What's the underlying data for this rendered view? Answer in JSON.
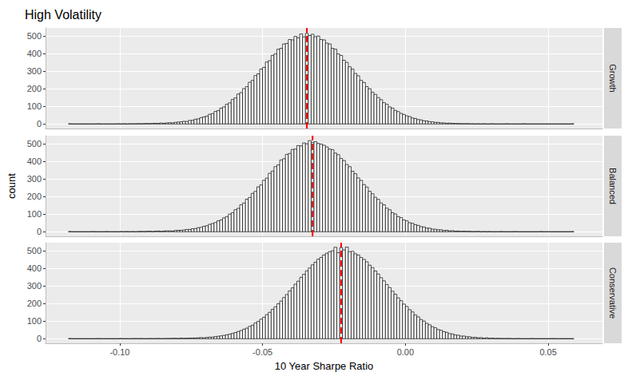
{
  "chart_data": {
    "type": "histogram",
    "title": "High Volatility",
    "xlabel": "10 Year Sharpe Ratio",
    "ylabel": "count",
    "bins": [
      -0.118,
      -0.117,
      -0.116,
      -0.115,
      -0.114,
      -0.113,
      -0.112,
      -0.111,
      -0.11,
      -0.109,
      -0.108,
      -0.107,
      -0.106,
      -0.105,
      -0.104,
      -0.103,
      -0.102,
      -0.101,
      -0.1,
      -0.099,
      -0.098,
      -0.097,
      -0.096,
      -0.095,
      -0.094,
      -0.093,
      -0.092,
      -0.091,
      -0.09,
      -0.089,
      -0.088,
      -0.087,
      -0.086,
      -0.085,
      -0.084,
      -0.083,
      -0.082,
      -0.081,
      -0.08,
      -0.079,
      -0.078,
      -0.077,
      -0.076,
      -0.075,
      -0.074,
      -0.073,
      -0.072,
      -0.071,
      -0.07,
      -0.069,
      -0.068,
      -0.067,
      -0.066,
      -0.065,
      -0.064,
      -0.063,
      -0.062,
      -0.061,
      -0.06,
      -0.059,
      -0.058,
      -0.057,
      -0.056,
      -0.055,
      -0.054,
      -0.053,
      -0.052,
      -0.051,
      -0.05,
      -0.049,
      -0.048,
      -0.047,
      -0.046,
      -0.045,
      -0.044,
      -0.043,
      -0.042,
      -0.041,
      -0.04,
      -0.039,
      -0.038,
      -0.037,
      -0.036,
      -0.035,
      -0.034,
      -0.033,
      -0.032,
      -0.031,
      -0.03,
      -0.029,
      -0.028,
      -0.027,
      -0.026,
      -0.025,
      -0.024,
      -0.023,
      -0.022,
      -0.021,
      -0.02,
      -0.019,
      -0.018,
      -0.017,
      -0.016,
      -0.015,
      -0.014,
      -0.013,
      -0.012,
      -0.011,
      -0.01,
      -0.009,
      -0.008,
      -0.007,
      -0.006,
      -0.005,
      -0.004,
      -0.003,
      -0.002,
      -0.001,
      0,
      0.001,
      0.002,
      0.003,
      0.004,
      0.005,
      0.006,
      0.007,
      0.008,
      0.009,
      0.01,
      0.011,
      0.012,
      0.013,
      0.014,
      0.015,
      0.016,
      0.017,
      0.018,
      0.019,
      0.02,
      0.021,
      0.022,
      0.023,
      0.024,
      0.025,
      0.026,
      0.027,
      0.028,
      0.029,
      0.03,
      0.031,
      0.032,
      0.033,
      0.034,
      0.035,
      0.036,
      0.037,
      0.038,
      0.039,
      0.04,
      0.041,
      0.042,
      0.043,
      0.044,
      0.045,
      0.046,
      0.047,
      0.048,
      0.049,
      0.05,
      0.051,
      0.052,
      0.053,
      0.054,
      0.055,
      0.056,
      0.057,
      0.058,
      0.059
    ],
    "series": [
      {
        "name": "Growth",
        "mean": -0.0345,
        "values": [
          1,
          0,
          0,
          0,
          0,
          0,
          0,
          0,
          0,
          0,
          1,
          0,
          0,
          0,
          0,
          0,
          0,
          1,
          0,
          1,
          0,
          1,
          1,
          1,
          2,
          1,
          2,
          3,
          2,
          3,
          4,
          3,
          5,
          4,
          6,
          7,
          6,
          9,
          11,
          12,
          15,
          14,
          20,
          21,
          27,
          29,
          36,
          40,
          45,
          55,
          59,
          71,
          76,
          90,
          97,
          112,
          120,
          139,
          148,
          170,
          178,
          201,
          212,
          237,
          248,
          275,
          285,
          312,
          322,
          352,
          360,
          390,
          398,
          425,
          430,
          455,
          458,
          480,
          478,
          498,
          490,
          512,
          495,
          515,
          503,
          510,
          496,
          500,
          480,
          478,
          460,
          455,
          430,
          425,
          398,
          390,
          362,
          350,
          325,
          312,
          287,
          274,
          248,
          236,
          212,
          200,
          180,
          168,
          150,
          138,
          121,
          112,
          97,
          90,
          77,
          70,
          60,
          54,
          46,
          42,
          34,
          31,
          25,
          23,
          18,
          17,
          13,
          12,
          9,
          9,
          6,
          6,
          4,
          5,
          3,
          3,
          2,
          2,
          1,
          2,
          1,
          1,
          0,
          1,
          0,
          1,
          0,
          0,
          1,
          0,
          0,
          0,
          0,
          1,
          0,
          0,
          0,
          0,
          0,
          1,
          0,
          0,
          0,
          0,
          0,
          0,
          0,
          0,
          0,
          0,
          0,
          0,
          0,
          0,
          0,
          0,
          1
        ]
      },
      {
        "name": "Balanced",
        "mean": -0.0325,
        "values": [
          1,
          0,
          0,
          0,
          0,
          0,
          0,
          0,
          1,
          0,
          0,
          0,
          0,
          1,
          0,
          0,
          0,
          0,
          1,
          0,
          1,
          0,
          1,
          0,
          1,
          2,
          1,
          2,
          3,
          1,
          3,
          4,
          2,
          4,
          5,
          5,
          4,
          7,
          8,
          8,
          10,
          13,
          13,
          17,
          18,
          23,
          25,
          31,
          34,
          42,
          47,
          52,
          62,
          67,
          79,
          86,
          100,
          108,
          125,
          133,
          153,
          163,
          185,
          195,
          218,
          229,
          255,
          266,
          293,
          305,
          332,
          345,
          370,
          380,
          408,
          415,
          440,
          445,
          468,
          470,
          490,
          488,
          505,
          500,
          518,
          508,
          512,
          502,
          498,
          492,
          482,
          470,
          466,
          447,
          438,
          417,
          405,
          382,
          370,
          344,
          330,
          306,
          292,
          268,
          254,
          230,
          216,
          196,
          184,
          164,
          153,
          134,
          125,
          108,
          101,
          86,
          80,
          67,
          62,
          51,
          48,
          40,
          36,
          29,
          27,
          21,
          20,
          15,
          14,
          11,
          11,
          7,
          8,
          5,
          6,
          3,
          4,
          2,
          3,
          2,
          2,
          1,
          1,
          2,
          0,
          1,
          0,
          1,
          0,
          0,
          0,
          1,
          0,
          0,
          0,
          0,
          1,
          0,
          0,
          0,
          0,
          0,
          0,
          0,
          0,
          1,
          0,
          0,
          0,
          0,
          0,
          0,
          0,
          0,
          0,
          0,
          1
        ]
      },
      {
        "name": "Conservative",
        "mean": -0.0225,
        "values": [
          1,
          0,
          0,
          0,
          0,
          0,
          0,
          0,
          0,
          0,
          1,
          0,
          0,
          0,
          0,
          0,
          0,
          0,
          1,
          0,
          0,
          0,
          0,
          1,
          0,
          1,
          0,
          0,
          1,
          0,
          1,
          1,
          0,
          1,
          1,
          1,
          2,
          2,
          1,
          3,
          2,
          3,
          3,
          4,
          4,
          5,
          6,
          5,
          7,
          9,
          9,
          12,
          14,
          16,
          19,
          22,
          26,
          30,
          35,
          41,
          46,
          54,
          60,
          70,
          77,
          89,
          98,
          111,
          122,
          137,
          150,
          167,
          181,
          199,
          214,
          234,
          251,
          272,
          289,
          310,
          327,
          349,
          366,
          386,
          402,
          420,
          435,
          452,
          462,
          476,
          486,
          495,
          500,
          520,
          490,
          518,
          505,
          521,
          495,
          497,
          483,
          476,
          462,
          451,
          437,
          418,
          404,
          385,
          368,
          347,
          329,
          308,
          291,
          270,
          253,
          232,
          216,
          197,
          183,
          165,
          152,
          135,
          124,
          109,
          100,
          87,
          79,
          68,
          62,
          52,
          48,
          40,
          36,
          29,
          27,
          21,
          20,
          15,
          15,
          11,
          11,
          7,
          8,
          5,
          6,
          3,
          5,
          2,
          3,
          1,
          2,
          1,
          1,
          1,
          1,
          0,
          0,
          1,
          0,
          0,
          0,
          0,
          1,
          0,
          0,
          0,
          0,
          0,
          0,
          1,
          0,
          0,
          0,
          0,
          0,
          0,
          0
        ]
      }
    ],
    "xlim": [
      -0.126,
      0.069
    ],
    "xticks": [
      {
        "value": -0.1,
        "label": "-0.10"
      },
      {
        "value": -0.05,
        "label": "-0.05"
      },
      {
        "value": 0,
        "label": "0.00"
      },
      {
        "value": 0.05,
        "label": "0.05"
      }
    ],
    "ylim": [
      -26,
      546
    ],
    "yticks": [
      0,
      100,
      200,
      300,
      400,
      500
    ],
    "grid": true
  }
}
